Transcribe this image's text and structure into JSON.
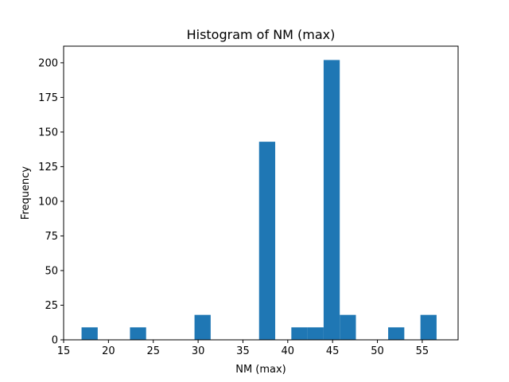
{
  "chart_data": {
    "type": "bar",
    "title": "Histogram of NM (max)",
    "xlabel": "NM (max)",
    "ylabel": "Frequency",
    "xlim": [
      15,
      59
    ],
    "ylim": [
      0,
      212
    ],
    "xticks": [
      15,
      20,
      25,
      30,
      35,
      40,
      45,
      50,
      55
    ],
    "yticks": [
      0,
      25,
      50,
      75,
      100,
      125,
      150,
      175,
      200
    ],
    "bin_edges": [
      17,
      18.8,
      20.6,
      22.4,
      24.2,
      26,
      27.8,
      29.6,
      31.4,
      33.2,
      35,
      36.8,
      38.6,
      40.4,
      42.2,
      44,
      45.8,
      47.6,
      49.4,
      51.2,
      53,
      54.8,
      56.6
    ],
    "values": [
      9,
      0,
      0,
      9,
      0,
      0,
      0,
      18,
      0,
      0,
      0,
      143,
      0,
      9,
      9,
      202,
      18,
      0,
      0,
      9,
      0,
      18
    ],
    "color": "#1f77b4",
    "grid": false,
    "legend": false
  }
}
